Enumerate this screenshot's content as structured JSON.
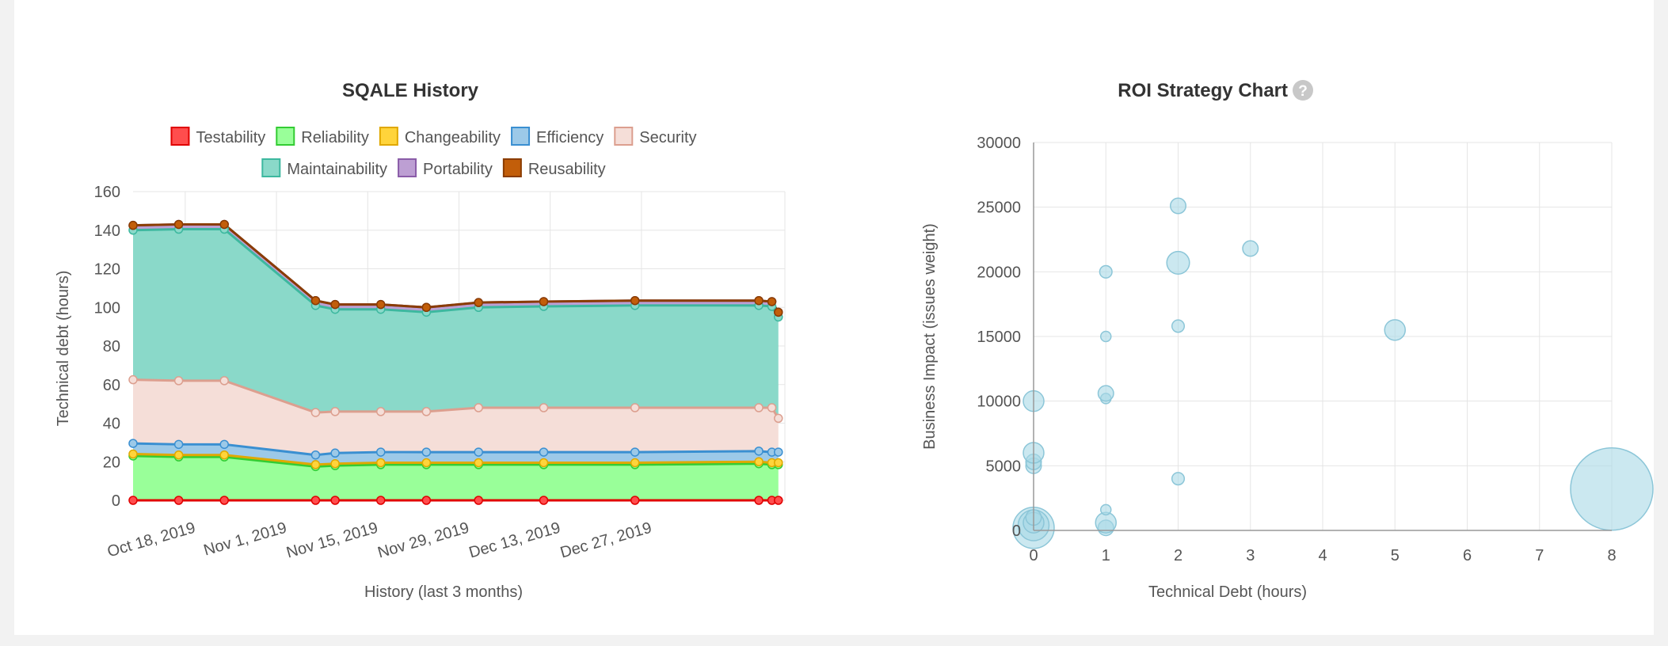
{
  "colors": {
    "grid": "#e5e5e5",
    "axis": "#999999",
    "bubble_fill": "#a8d8e6",
    "bubble_stroke": "#8cc6d8"
  },
  "chart_data": [
    {
      "type": "area",
      "stacked": true,
      "title": "SQALE History",
      "xlabel": "History (last 3 months)",
      "ylabel": "Technical debt (hours)",
      "ylim": [
        0,
        160
      ],
      "yticks": [
        0,
        20,
        40,
        60,
        80,
        100,
        120,
        140,
        160
      ],
      "x_tick_labels": [
        "Oct 18, 2019",
        "Nov 1, 2019",
        "Nov 15, 2019",
        "Nov 29, 2019",
        "Dec 13, 2019",
        "Dec 27, 2019"
      ],
      "x_days": [
        0,
        7,
        14,
        28,
        31,
        38,
        45,
        53,
        63,
        77,
        96,
        98,
        99
      ],
      "x_range_days": [
        0,
        100
      ],
      "legend_position": "top",
      "series": [
        {
          "name": "Testability",
          "color": "#ff4d4d",
          "border": "#e00000",
          "values": [
            0,
            0,
            0,
            0,
            0,
            0,
            0,
            0,
            0,
            0,
            0,
            0,
            0
          ]
        },
        {
          "name": "Reliability",
          "color": "#99ff99",
          "border": "#33cc33",
          "values": [
            23,
            22.5,
            22.5,
            17.5,
            18,
            18.5,
            18.5,
            18.5,
            18.5,
            18.5,
            19,
            18.5,
            18.5
          ]
        },
        {
          "name": "Changeability",
          "color": "#ffd43b",
          "border": "#e0a800",
          "values": [
            1,
            1,
            1,
            1,
            1,
            1,
            1,
            1,
            1,
            1,
            1,
            1,
            1
          ]
        },
        {
          "name": "Efficiency",
          "color": "#9cc9e8",
          "border": "#3a8fd1",
          "values": [
            5.5,
            5.5,
            5.5,
            5,
            5.5,
            5.5,
            5.5,
            5.5,
            5.5,
            5.5,
            5.5,
            5.5,
            5.5
          ]
        },
        {
          "name": "Security",
          "color": "#f5ded8",
          "border": "#dc9f8f",
          "values": [
            33,
            33,
            33,
            22,
            21.5,
            21,
            21,
            23,
            23,
            23,
            22.5,
            23,
            17.5
          ]
        },
        {
          "name": "Maintainability",
          "color": "#8ad9c9",
          "border": "#3db89f",
          "values": [
            77.5,
            78.5,
            78.5,
            55.5,
            53,
            53,
            51.5,
            52,
            52.5,
            53,
            53,
            52.5,
            52.5
          ]
        },
        {
          "name": "Portability",
          "color": "#bd9fd3",
          "border": "#8a5ca8",
          "values": [
            2.5,
            2.5,
            2.5,
            2.5,
            2.5,
            2.5,
            2.5,
            2.5,
            2.5,
            2.5,
            2.5,
            2.5,
            2.5
          ]
        },
        {
          "name": "Reusability",
          "color": "#c25e0a",
          "border": "#8a3c00",
          "values": [
            0,
            0,
            0,
            0,
            0,
            0,
            0,
            0,
            0,
            0,
            0,
            0,
            0
          ]
        }
      ]
    },
    {
      "type": "scatter",
      "title": "ROI Strategy Chart",
      "help_icon": "question-circle-icon",
      "xlabel": "Technical Debt (hours)",
      "ylabel": "Business Impact (issues weight)",
      "xlim": [
        0,
        8
      ],
      "ylim": [
        0,
        30000
      ],
      "xticks": [
        0,
        1,
        2,
        3,
        4,
        5,
        6,
        7,
        8
      ],
      "yticks": [
        0,
        5000,
        10000,
        15000,
        20000,
        25000,
        30000
      ],
      "points": [
        {
          "x": 0,
          "y": 200,
          "r": 4
        },
        {
          "x": 0,
          "y": 400,
          "r": 3
        },
        {
          "x": 0,
          "y": 600,
          "r": 2
        },
        {
          "x": 0,
          "y": 1000,
          "r": 1.5
        },
        {
          "x": 0,
          "y": 5000,
          "r": 1.5
        },
        {
          "x": 0,
          "y": 5300,
          "r": 1.5
        },
        {
          "x": 0,
          "y": 6000,
          "r": 2
        },
        {
          "x": 0,
          "y": 10000,
          "r": 2
        },
        {
          "x": 1,
          "y": 200,
          "r": 1.5
        },
        {
          "x": 1,
          "y": 600,
          "r": 2
        },
        {
          "x": 1,
          "y": 1600,
          "r": 1
        },
        {
          "x": 1,
          "y": 10200,
          "r": 1
        },
        {
          "x": 1,
          "y": 10600,
          "r": 1.5
        },
        {
          "x": 1,
          "y": 15000,
          "r": 1
        },
        {
          "x": 1,
          "y": 20000,
          "r": 1.2
        },
        {
          "x": 2,
          "y": 4000,
          "r": 1.2
        },
        {
          "x": 2,
          "y": 15800,
          "r": 1.2
        },
        {
          "x": 2,
          "y": 20700,
          "r": 2.2
        },
        {
          "x": 2,
          "y": 25100,
          "r": 1.5
        },
        {
          "x": 3,
          "y": 21800,
          "r": 1.5
        },
        {
          "x": 5,
          "y": 15500,
          "r": 2
        },
        {
          "x": 8,
          "y": 3200,
          "r": 8
        }
      ]
    }
  ]
}
